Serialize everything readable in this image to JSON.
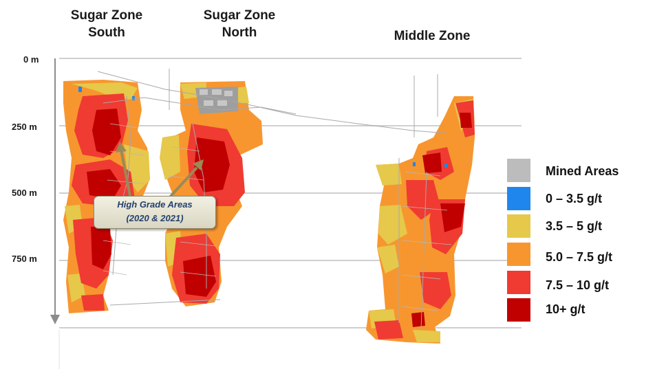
{
  "zones": {
    "south": "Sugar Zone\nSouth",
    "north": "Sugar Zone\nNorth",
    "middle": "Middle Zone"
  },
  "depth_labels": [
    "0 m",
    "250 m",
    "500 m",
    "750 m"
  ],
  "callout": {
    "line1": "High Grade Areas",
    "line2": "(2020 & 2021)"
  },
  "legend": [
    {
      "label": "Mined Areas",
      "color": "#bcbcbc"
    },
    {
      "label": "0 – 3.5 g/t",
      "color": "#1f86ee"
    },
    {
      "label": "3.5 – 5 g/t",
      "color": "#e6c84a"
    },
    {
      "label": "5.0 – 7.5 g/t",
      "color": "#f7962f"
    },
    {
      "label": "7.5 – 10 g/t",
      "color": "#ef3b32"
    },
    {
      "label": "10+ g/t",
      "color": "#c00000"
    }
  ],
  "colors": {
    "mined": "#9e9e9e",
    "low": "#1f86ee",
    "yellow": "#e6c84a",
    "orange": "#f7962f",
    "red": "#ef3b32",
    "darkred": "#c00000",
    "gridline": "#cfcfcf",
    "arrow": "#8c8c8c",
    "callout_arrow": "#9b8a55"
  }
}
